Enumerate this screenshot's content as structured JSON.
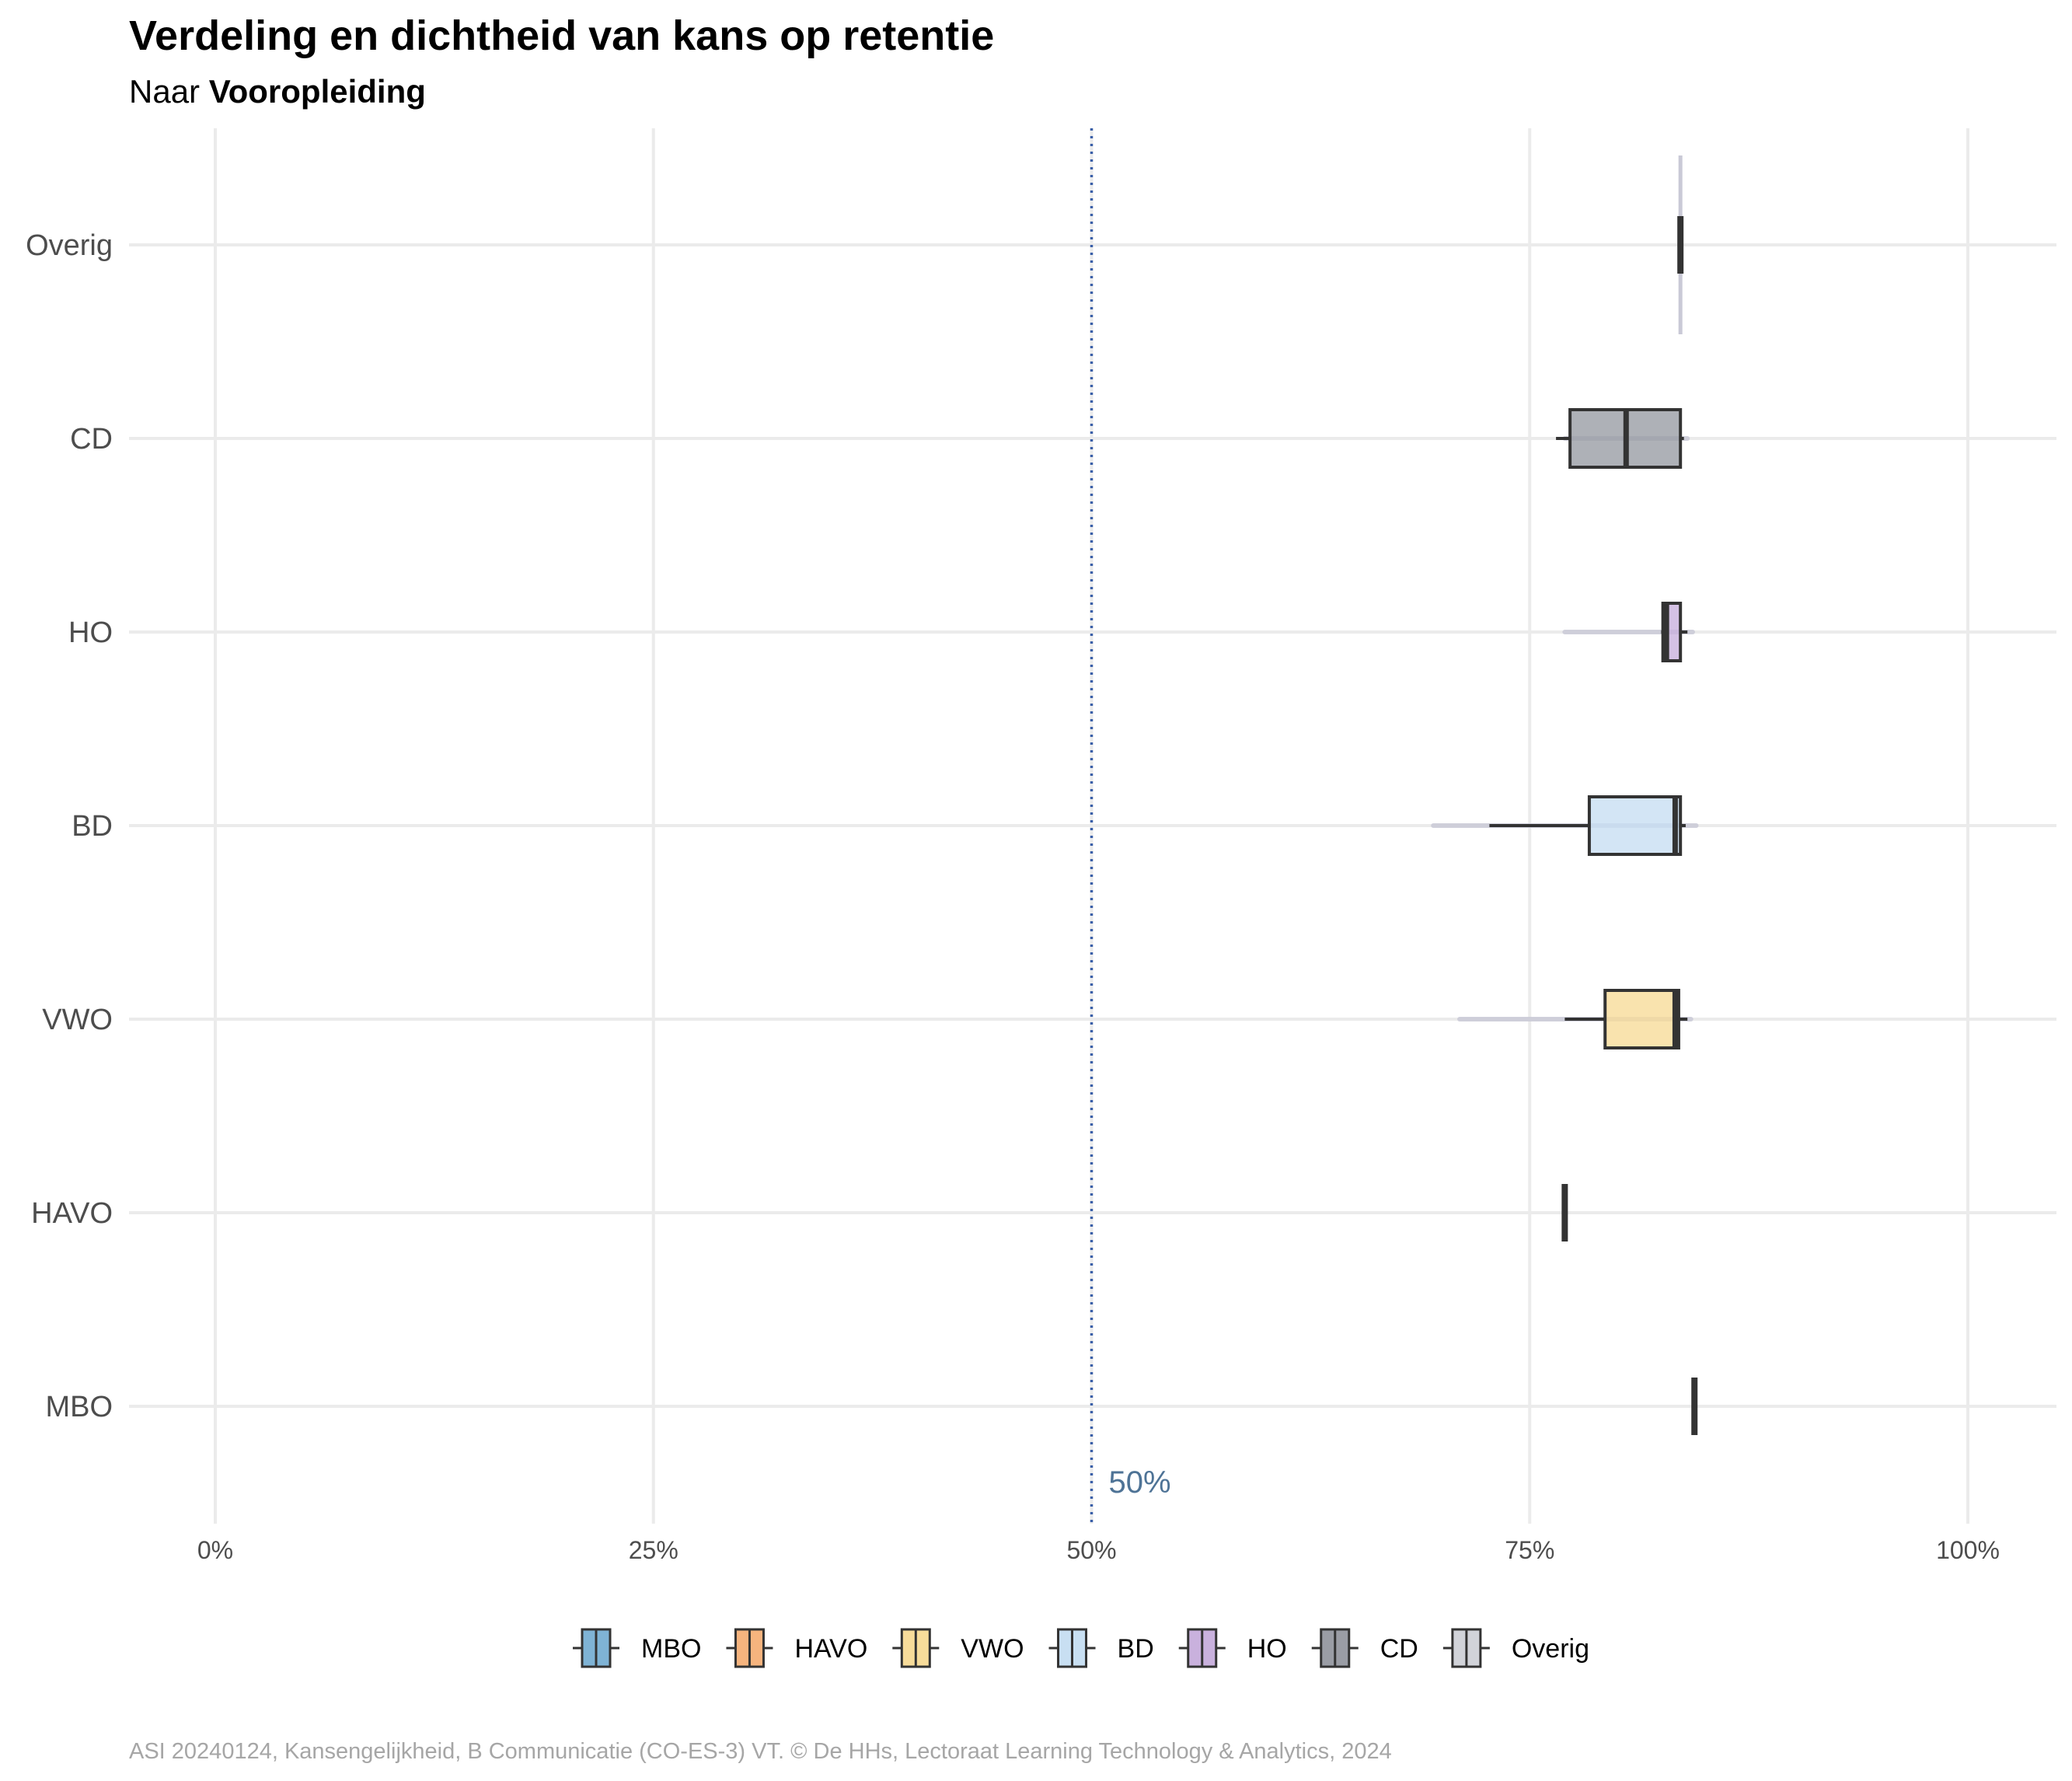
{
  "chart_data": {
    "type": "boxplot",
    "title": "Verdeling en dichtheid van kans op retentie",
    "subtitle_prefix": "Naar ",
    "subtitle_bold": "Vooropleiding",
    "categories": [
      "Overig",
      "CD",
      "HO",
      "BD",
      "VWO",
      "HAVO",
      "MBO"
    ],
    "x_ticks": [
      0,
      25,
      50,
      75,
      100
    ],
    "x_tick_labels": [
      "0%",
      "25%",
      "50%",
      "75%",
      "100%"
    ],
    "xlim": [
      -5,
      105
    ],
    "reference_line": {
      "value": 50,
      "label": "50%",
      "color": "#3a5fa8"
    },
    "series": [
      {
        "category": "Overig",
        "color": "#d1d3d9",
        "min": 83.6,
        "q1": 83.6,
        "median": 83.6,
        "q3": 83.6,
        "max": 83.6,
        "density_min": 83.6,
        "density_max": 83.6
      },
      {
        "category": "CD",
        "color": "#9a9da5",
        "min": 76.5,
        "q1": 77.3,
        "median": 80.5,
        "q3": 83.6,
        "max": 83.8,
        "density_min": 77.0,
        "density_max": 84.0
      },
      {
        "category": "HO",
        "color": "#c9b1dd",
        "min": 82.5,
        "q1": 82.6,
        "median": 82.8,
        "q3": 83.6,
        "max": 84.0,
        "density_min": 77.0,
        "density_max": 84.3
      },
      {
        "category": "BD",
        "color": "#c8dff2",
        "min": 72.7,
        "q1": 78.4,
        "median": 83.3,
        "q3": 83.6,
        "max": 83.9,
        "density_min": 69.5,
        "density_max": 84.5
      },
      {
        "category": "VWO",
        "color": "#f7dc9a",
        "min": 77.0,
        "q1": 79.3,
        "median": 83.3,
        "q3": 83.5,
        "max": 84.0,
        "density_min": 71.0,
        "density_max": 84.2
      },
      {
        "category": "HAVO",
        "color": "#f6b47e",
        "min": 77.0,
        "q1": 77.0,
        "median": 77.0,
        "q3": 77.0,
        "max": 77.0,
        "density_min": 77.0,
        "density_max": 77.0
      },
      {
        "category": "MBO",
        "color": "#7fb3d5",
        "min": 84.4,
        "q1": 84.4,
        "median": 84.4,
        "q3": 84.4,
        "max": 84.4,
        "density_min": 84.4,
        "density_max": 84.4
      }
    ],
    "legend": {
      "position": "bottom",
      "entries": [
        {
          "label": "MBO",
          "color": "#7fb3d5"
        },
        {
          "label": "HAVO",
          "color": "#f6b47e"
        },
        {
          "label": "VWO",
          "color": "#f7dc9a"
        },
        {
          "label": "BD",
          "color": "#c8dff2"
        },
        {
          "label": "HO",
          "color": "#c9b1dd"
        },
        {
          "label": "CD",
          "color": "#9a9da5"
        },
        {
          "label": "Overig",
          "color": "#d1d3d9"
        }
      ]
    },
    "grid": true,
    "caption": "ASI 20240124, Kansengelijkheid, B Communicatie (CO-ES-3) VT. © De HHs, Lectoraat Learning Technology & Analytics, 2024"
  }
}
